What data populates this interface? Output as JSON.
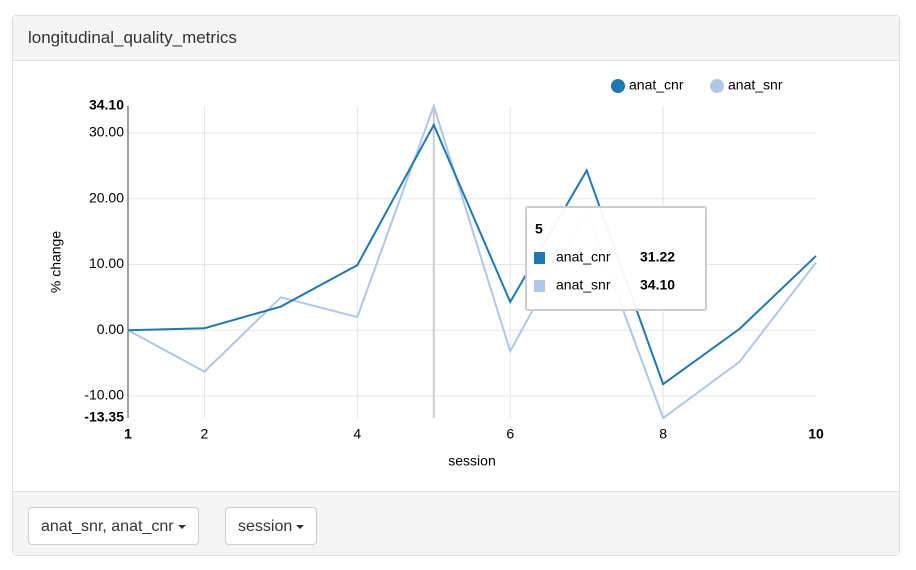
{
  "panel": {
    "title": "longitudinal_quality_metrics",
    "buttons": [
      "anat_snr, anat_cnr",
      "session"
    ]
  },
  "chart_data": {
    "type": "line",
    "x_label": "session",
    "y_label": "% change",
    "x": [
      1,
      2,
      3,
      4,
      5,
      6,
      7,
      8,
      9,
      10
    ],
    "series": [
      {
        "name": "anat_cnr",
        "color": "#1f77b4",
        "values": [
          0,
          0.3,
          3.6,
          9.9,
          31.22,
          4.3,
          24.3,
          -8.2,
          0.2,
          11.3
        ]
      },
      {
        "name": "anat_snr",
        "color": "#aec7e8",
        "values": [
          0,
          -6.3,
          5.0,
          2.0,
          34.1,
          -3.2,
          18.0,
          -13.35,
          -4.8,
          10.3
        ]
      }
    ],
    "xlim": [
      1,
      10
    ],
    "xticks": [
      1,
      2,
      4,
      6,
      8,
      10
    ],
    "ylim": [
      -13.35,
      34.1
    ],
    "yticks": [
      {
        "value": -13.35,
        "label": "-13.35"
      },
      {
        "value": -10,
        "label": "-10.00"
      },
      {
        "value": 0,
        "label": "0.00"
      },
      {
        "value": 10,
        "label": "10.00"
      },
      {
        "value": 20,
        "label": "20.00"
      },
      {
        "value": 30,
        "label": "30.00"
      },
      {
        "value": 34.1,
        "label": "34.10"
      }
    ],
    "grid": true,
    "tooltip_index": 4
  }
}
